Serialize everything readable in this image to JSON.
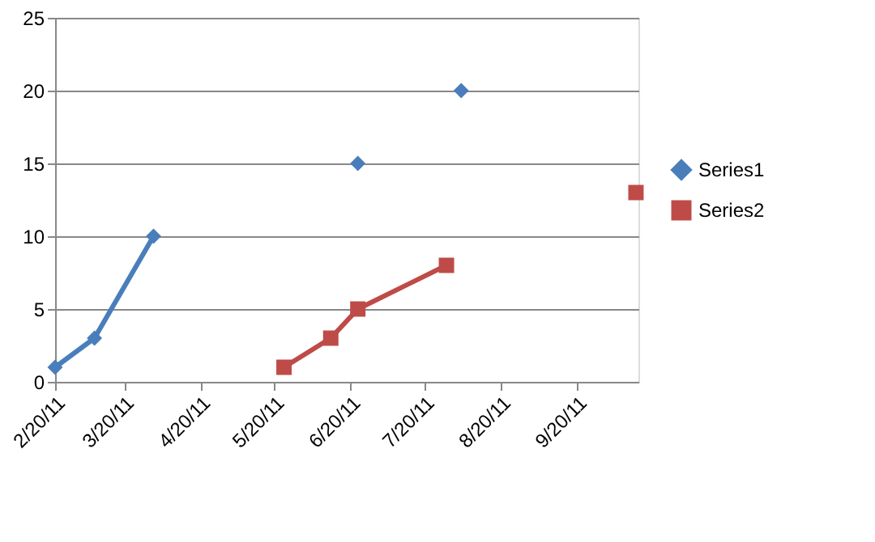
{
  "chart_data": {
    "type": "line",
    "x": [
      "2011-02-20",
      "2011-03-08",
      "2011-04-01",
      "2011-05-24",
      "2011-06-12",
      "2011-06-23",
      "2011-07-29",
      "2011-08-04",
      "2011-10-14"
    ],
    "series": [
      {
        "name": "Series1",
        "color": "#4a7ebb",
        "marker": "diamond",
        "values": [
          1,
          3,
          10,
          null,
          null,
          15,
          null,
          20,
          null
        ]
      },
      {
        "name": "Series2",
        "color": "#be4b48",
        "marker": "square",
        "values": [
          null,
          null,
          null,
          1,
          3,
          5,
          8,
          null,
          13
        ]
      }
    ],
    "xlim": [
      "2011-02-20",
      "2011-10-15"
    ],
    "xticks": [
      {
        "value": "2011-02-20",
        "label": "2/20/11"
      },
      {
        "value": "2011-03-20",
        "label": "3/20/11"
      },
      {
        "value": "2011-04-20",
        "label": "4/20/11"
      },
      {
        "value": "2011-05-20",
        "label": "5/20/11"
      },
      {
        "value": "2011-06-20",
        "label": "6/20/11"
      },
      {
        "value": "2011-07-20",
        "label": "7/20/11"
      },
      {
        "value": "2011-08-20",
        "label": "8/20/11"
      },
      {
        "value": "2011-09-20",
        "label": "9/20/11"
      }
    ],
    "ylim": [
      0,
      25
    ],
    "yticks": [
      0,
      5,
      10,
      15,
      20,
      25
    ],
    "grid": "y",
    "legend": "right",
    "line_style": "solid"
  }
}
